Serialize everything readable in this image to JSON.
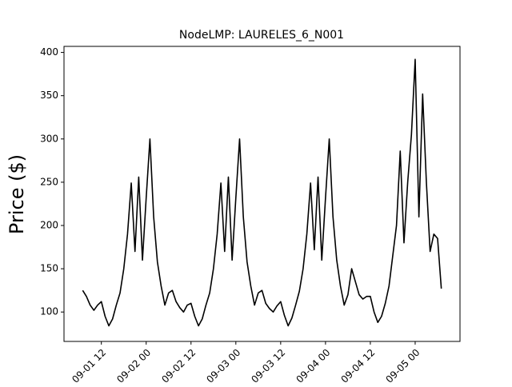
{
  "chart_data": {
    "type": "line",
    "title": "NodeLMP: LAURELES_6_N001",
    "y_label": "Price ($)",
    "x": [
      "09-01 07",
      "09-01 08",
      "09-01 09",
      "09-01 10",
      "09-01 11",
      "09-01 12",
      "09-01 13",
      "09-01 14",
      "09-01 15",
      "09-01 16",
      "09-01 17",
      "09-01 18",
      "09-01 19",
      "09-01 20",
      "09-01 21",
      "09-01 22",
      "09-01 23",
      "09-02 00",
      "09-02 01",
      "09-02 02",
      "09-02 03",
      "09-02 04",
      "09-02 05",
      "09-02 06",
      "09-02 07",
      "09-02 08",
      "09-02 09",
      "09-02 10",
      "09-02 11",
      "09-02 12",
      "09-02 13",
      "09-02 14",
      "09-02 15",
      "09-02 16",
      "09-02 17",
      "09-02 18",
      "09-02 19",
      "09-02 20",
      "09-02 21",
      "09-02 22",
      "09-02 23",
      "09-03 00",
      "09-03 01",
      "09-03 02",
      "09-03 03",
      "09-03 04",
      "09-03 05",
      "09-03 06",
      "09-03 07",
      "09-03 08",
      "09-03 09",
      "09-03 10",
      "09-03 11",
      "09-03 12",
      "09-03 13",
      "09-03 14",
      "09-03 15",
      "09-03 16",
      "09-03 17",
      "09-03 18",
      "09-03 19",
      "09-03 20",
      "09-03 21",
      "09-03 22",
      "09-03 23",
      "09-04 00",
      "09-04 01",
      "09-04 02",
      "09-04 03",
      "09-04 04",
      "09-04 05",
      "09-04 06",
      "09-04 07",
      "09-04 08",
      "09-04 09",
      "09-04 10",
      "09-04 11",
      "09-04 12",
      "09-04 13",
      "09-04 14",
      "09-04 15",
      "09-04 16",
      "09-04 17",
      "09-04 18",
      "09-04 19",
      "09-04 20",
      "09-04 21",
      "09-04 22",
      "09-04 23",
      "09-05 00",
      "09-05 01",
      "09-05 02",
      "09-05 03",
      "09-05 04",
      "09-05 05",
      "09-05 06",
      "09-05 07"
    ],
    "series": [
      {
        "name": "LAURELES_6_N001",
        "color": "#000000",
        "values": [
          125,
          118,
          108,
          102,
          108,
          112,
          95,
          84,
          92,
          108,
          122,
          150,
          190,
          249,
          170,
          256,
          160,
          232,
          300,
          210,
          158,
          130,
          108,
          122,
          125,
          112,
          105,
          100,
          108,
          110,
          95,
          84,
          92,
          108,
          122,
          150,
          190,
          249,
          170,
          256,
          160,
          232,
          300,
          210,
          158,
          130,
          108,
          122,
          125,
          110,
          104,
          100,
          107,
          112,
          96,
          84,
          93,
          108,
          124,
          150,
          190,
          249,
          172,
          256,
          160,
          232,
          300,
          210,
          160,
          130,
          108,
          120,
          150,
          135,
          120,
          115,
          118,
          118,
          100,
          88,
          95,
          110,
          130,
          165,
          200,
          286,
          180,
          250,
          305,
          392,
          210,
          352,
          250,
          170,
          190,
          185,
          127
        ]
      }
    ],
    "xlim": [
      "09-01 02",
      "09-05 12"
    ],
    "xticks": [
      "09-01 12",
      "09-02 00",
      "09-02 12",
      "09-03 00",
      "09-03 12",
      "09-04 00",
      "09-04 12",
      "09-05 00"
    ],
    "ylim": [
      66,
      407
    ],
    "yticks": [
      100,
      150,
      200,
      250,
      300,
      350,
      400
    ]
  }
}
